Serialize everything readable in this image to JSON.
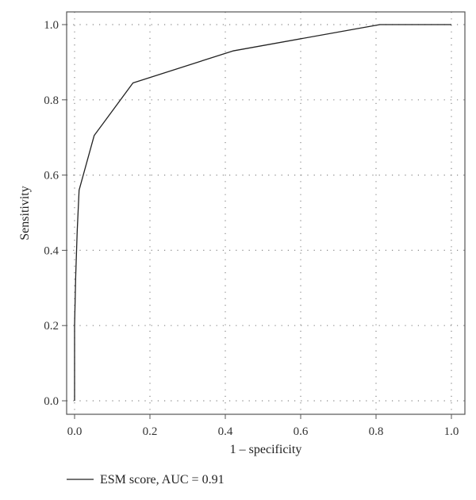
{
  "chart_data": {
    "type": "line",
    "xlabel": "1 – specificity",
    "ylabel": "Sensitivity",
    "xlim": [
      0.0,
      1.0
    ],
    "ylim": [
      0.0,
      1.0
    ],
    "x_ticks": [
      "0.0",
      "0.2",
      "0.4",
      "0.6",
      "0.8",
      "1.0"
    ],
    "y_ticks": [
      "0.0",
      "0.2",
      "0.4",
      "0.6",
      "0.8",
      "1.0"
    ],
    "grid": true,
    "legend_position": "bottom-left",
    "colors": {
      "line": "#222222",
      "grid": "#888888",
      "frame": "#555555"
    },
    "series": [
      {
        "name": "ESM score, AUC = 0.91",
        "x": [
          0.0,
          0.0,
          0.003,
          0.007,
          0.012,
          0.052,
          0.155,
          0.42,
          0.81,
          1.0
        ],
        "y": [
          0.0,
          0.2,
          0.33,
          0.45,
          0.56,
          0.705,
          0.845,
          0.93,
          1.0,
          1.0
        ]
      }
    ]
  }
}
